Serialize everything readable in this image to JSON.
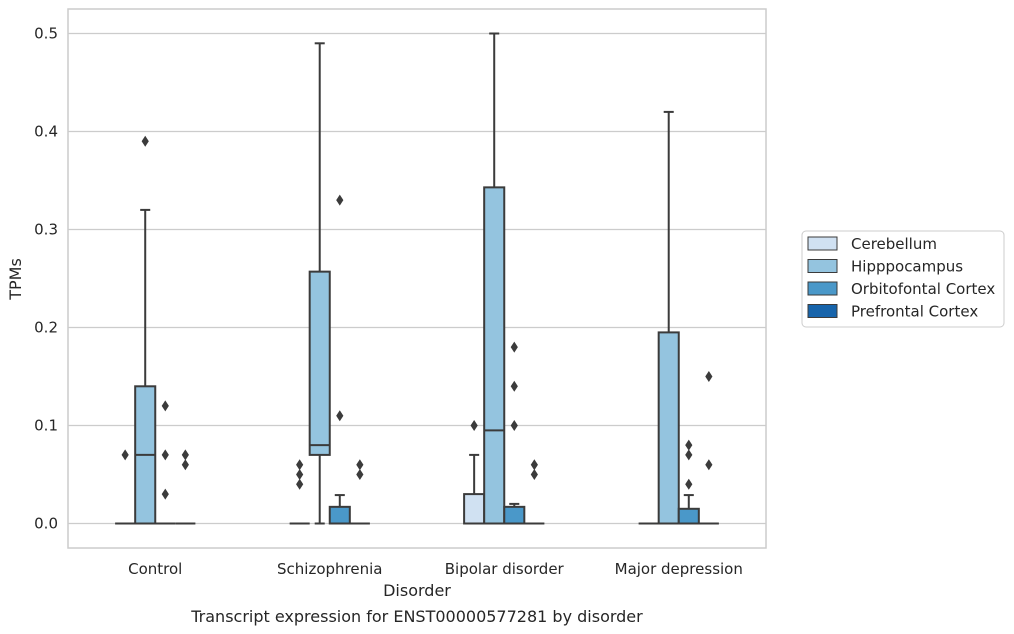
{
  "chart_data": {
    "type": "box",
    "caption": "Transcript expression for ENST00000577281 by disorder",
    "xlabel": "Disorder",
    "ylabel": "TPMs",
    "ylim": [
      -0.025,
      0.525
    ],
    "yticks": [
      0.0,
      0.1,
      0.2,
      0.3,
      0.4,
      0.5
    ],
    "ytick_labels": [
      "0.0",
      "0.1",
      "0.2",
      "0.3",
      "0.4",
      "0.5"
    ],
    "grid": "horizontal",
    "legend_position": "right",
    "categories": [
      "Control",
      "Schizophrenia",
      "Bipolar disorder",
      "Major depression"
    ],
    "series": [
      {
        "name": "Cerebellum",
        "color": "#d0e1f2",
        "boxes": [
          {
            "category": "Control",
            "q1": 0.0,
            "median": 0.0,
            "q3": 0.0,
            "whisker_low": 0.0,
            "whisker_high": 0.0,
            "outliers": [
              0.07
            ]
          },
          {
            "category": "Schizophrenia",
            "q1": 0.0,
            "median": 0.0,
            "q3": 0.0,
            "whisker_low": 0.0,
            "whisker_high": 0.0,
            "outliers": [
              0.06,
              0.05,
              0.04
            ]
          },
          {
            "category": "Bipolar disorder",
            "q1": 0.0,
            "median": 0.0,
            "q3": 0.03,
            "whisker_low": 0.0,
            "whisker_high": 0.07,
            "outliers": [
              0.1
            ]
          },
          {
            "category": "Major depression",
            "q1": 0.0,
            "median": 0.0,
            "q3": 0.0,
            "whisker_low": 0.0,
            "whisker_high": 0.0,
            "outliers": []
          }
        ]
      },
      {
        "name": "Hipppocampus",
        "color": "#94c4df",
        "boxes": [
          {
            "category": "Control",
            "q1": 0.0,
            "median": 0.07,
            "q3": 0.14,
            "whisker_low": 0.0,
            "whisker_high": 0.32,
            "outliers": [
              0.39
            ]
          },
          {
            "category": "Schizophrenia",
            "q1": 0.07,
            "median": 0.08,
            "q3": 0.257,
            "whisker_low": 0.0,
            "whisker_high": 0.49,
            "outliers": []
          },
          {
            "category": "Bipolar disorder",
            "q1": 0.0,
            "median": 0.095,
            "q3": 0.343,
            "whisker_low": 0.0,
            "whisker_high": 0.5,
            "outliers": []
          },
          {
            "category": "Major depression",
            "q1": 0.0,
            "median": 0.0,
            "q3": 0.195,
            "whisker_low": 0.0,
            "whisker_high": 0.42,
            "outliers": []
          }
        ]
      },
      {
        "name": "Orbitofontal Cortex",
        "color": "#4a98c9",
        "boxes": [
          {
            "category": "Control",
            "q1": 0.0,
            "median": 0.0,
            "q3": 0.0,
            "whisker_low": 0.0,
            "whisker_high": 0.0,
            "outliers": [
              0.12,
              0.07,
              0.03
            ]
          },
          {
            "category": "Schizophrenia",
            "q1": 0.0,
            "median": 0.0,
            "q3": 0.017,
            "whisker_low": 0.0,
            "whisker_high": 0.029,
            "outliers": [
              0.33,
              0.11
            ]
          },
          {
            "category": "Bipolar disorder",
            "q1": 0.0,
            "median": 0.0,
            "q3": 0.017,
            "whisker_low": 0.0,
            "whisker_high": 0.02,
            "outliers": [
              0.18,
              0.14,
              0.1
            ]
          },
          {
            "category": "Major depression",
            "q1": 0.0,
            "median": 0.0,
            "q3": 0.015,
            "whisker_low": 0.0,
            "whisker_high": 0.029,
            "outliers": [
              0.08,
              0.07,
              0.04
            ]
          }
        ]
      },
      {
        "name": "Prefrontal Cortex",
        "color": "#1764ab",
        "boxes": [
          {
            "category": "Control",
            "q1": 0.0,
            "median": 0.0,
            "q3": 0.0,
            "whisker_low": 0.0,
            "whisker_high": 0.0,
            "outliers": [
              0.07,
              0.06
            ]
          },
          {
            "category": "Schizophrenia",
            "q1": 0.0,
            "median": 0.0,
            "q3": 0.0,
            "whisker_low": 0.0,
            "whisker_high": 0.0,
            "outliers": [
              0.06,
              0.05
            ]
          },
          {
            "category": "Bipolar disorder",
            "q1": 0.0,
            "median": 0.0,
            "q3": 0.0,
            "whisker_low": 0.0,
            "whisker_high": 0.0,
            "outliers": [
              0.06,
              0.05
            ]
          },
          {
            "category": "Major depression",
            "q1": 0.0,
            "median": 0.0,
            "q3": 0.0,
            "whisker_low": 0.0,
            "whisker_high": 0.0,
            "outliers": [
              0.15,
              0.06
            ]
          }
        ]
      }
    ]
  }
}
